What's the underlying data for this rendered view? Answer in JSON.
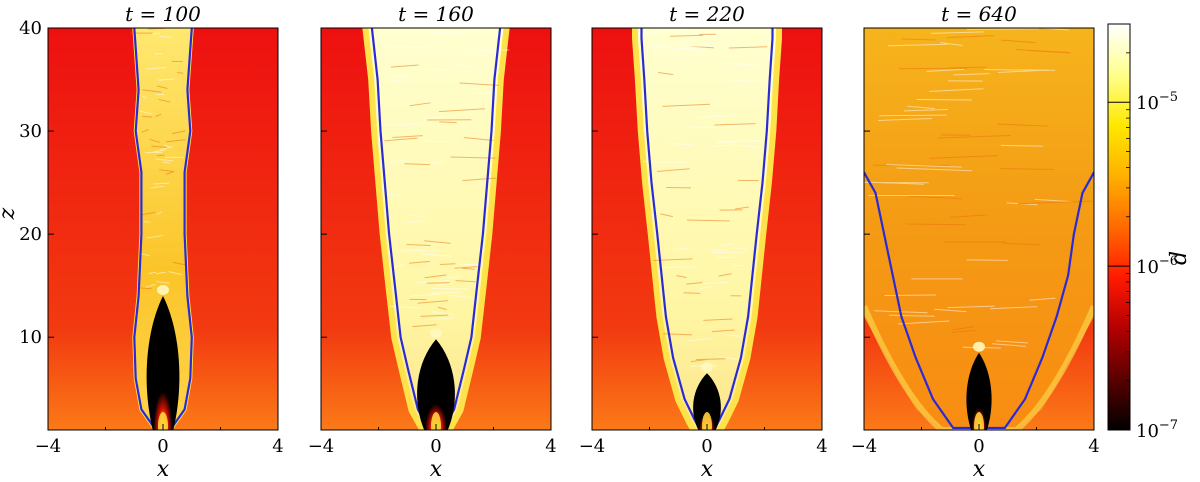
{
  "chart_data": {
    "type": "heatmap",
    "panels": [
      {
        "title": "t = 100",
        "xlabel": "x",
        "ylabel": "z",
        "xlim": [
          -4,
          4
        ],
        "ylim": [
          1,
          40
        ],
        "xticks": [
          "−4",
          "0",
          "4"
        ],
        "yticks": [
          "10",
          "20",
          "30",
          "40"
        ],
        "cocoon_profile": [
          [
            1,
            0.25
          ],
          [
            3,
            0.75
          ],
          [
            6,
            0.95
          ],
          [
            10,
            1.0
          ],
          [
            14,
            0.85
          ],
          [
            20,
            0.75
          ],
          [
            26,
            0.75
          ],
          [
            30,
            0.95
          ],
          [
            34,
            0.85
          ],
          [
            40,
            1.0
          ]
        ],
        "cavity_tip_z": 14,
        "cavity_half_width": 0.65
      },
      {
        "title": "t = 160",
        "xlabel": "x",
        "ylabel": "",
        "xlim": [
          -4,
          4
        ],
        "ylim": [
          1,
          40
        ],
        "xticks": [
          "−4",
          "0",
          "4"
        ],
        "yticks": [],
        "cocoon_profile": [
          [
            1,
            0.35
          ],
          [
            3,
            0.75
          ],
          [
            7,
            1.1
          ],
          [
            10,
            1.35
          ],
          [
            15,
            1.55
          ],
          [
            20,
            1.75
          ],
          [
            25,
            1.9
          ],
          [
            30,
            2.05
          ],
          [
            35,
            2.15
          ],
          [
            40,
            2.35
          ]
        ],
        "cavity_tip_z": 9.8,
        "cavity_half_width": 0.75
      },
      {
        "title": "t = 220",
        "xlabel": "x",
        "ylabel": "",
        "xlim": [
          -4,
          4
        ],
        "ylim": [
          1,
          40
        ],
        "xticks": [
          "−4",
          "0",
          "4"
        ],
        "yticks": [],
        "cocoon_profile": [
          [
            1,
            0.35
          ],
          [
            2,
            0.55
          ],
          [
            4,
            0.9
          ],
          [
            8,
            1.3
          ],
          [
            12,
            1.55
          ],
          [
            16,
            1.7
          ],
          [
            20,
            1.85
          ],
          [
            25,
            2.05
          ],
          [
            30,
            2.2
          ],
          [
            35,
            2.3
          ],
          [
            39,
            2.4
          ],
          [
            40,
            2.4
          ]
        ],
        "cavity_tip_z": 6.5,
        "cavity_half_width": 0.55
      },
      {
        "title": "t = 640",
        "xlabel": "x",
        "ylabel": "",
        "xlim": [
          -4,
          4
        ],
        "ylim": [
          1,
          40
        ],
        "xticks": [
          "−4",
          "0",
          "4"
        ],
        "yticks": [],
        "cocoon_profile": [
          [
            1,
            0.6
          ],
          [
            4,
            1.6
          ],
          [
            8,
            2.3
          ],
          [
            12,
            2.8
          ],
          [
            16,
            3.1
          ],
          [
            20,
            3.35
          ],
          [
            24,
            3.6
          ],
          [
            26,
            4.0
          ]
        ],
        "cavity_tip_z": 8.5,
        "cavity_half_width": 0.5
      }
    ],
    "colorbar": {
      "label": "d",
      "scale": "log",
      "range": [
        1e-07,
        3e-05
      ],
      "ticks": [
        {
          "value": 1e-07,
          "base": "10",
          "exp": "−7"
        },
        {
          "value": 1e-06,
          "base": "10",
          "exp": "−6"
        },
        {
          "value": 1e-05,
          "base": "10",
          "exp": "−5"
        }
      ],
      "colormap": [
        "#000000",
        "#5a0000",
        "#b30000",
        "#ff1a00",
        "#ff6a00",
        "#ffb000",
        "#ffe800",
        "#ffff8c",
        "#ffffff"
      ]
    },
    "colors": {
      "ambient": "#ee1212",
      "contour": "#2b2bd6",
      "cocoon": "#fff09a",
      "cavity": "#000000"
    }
  }
}
